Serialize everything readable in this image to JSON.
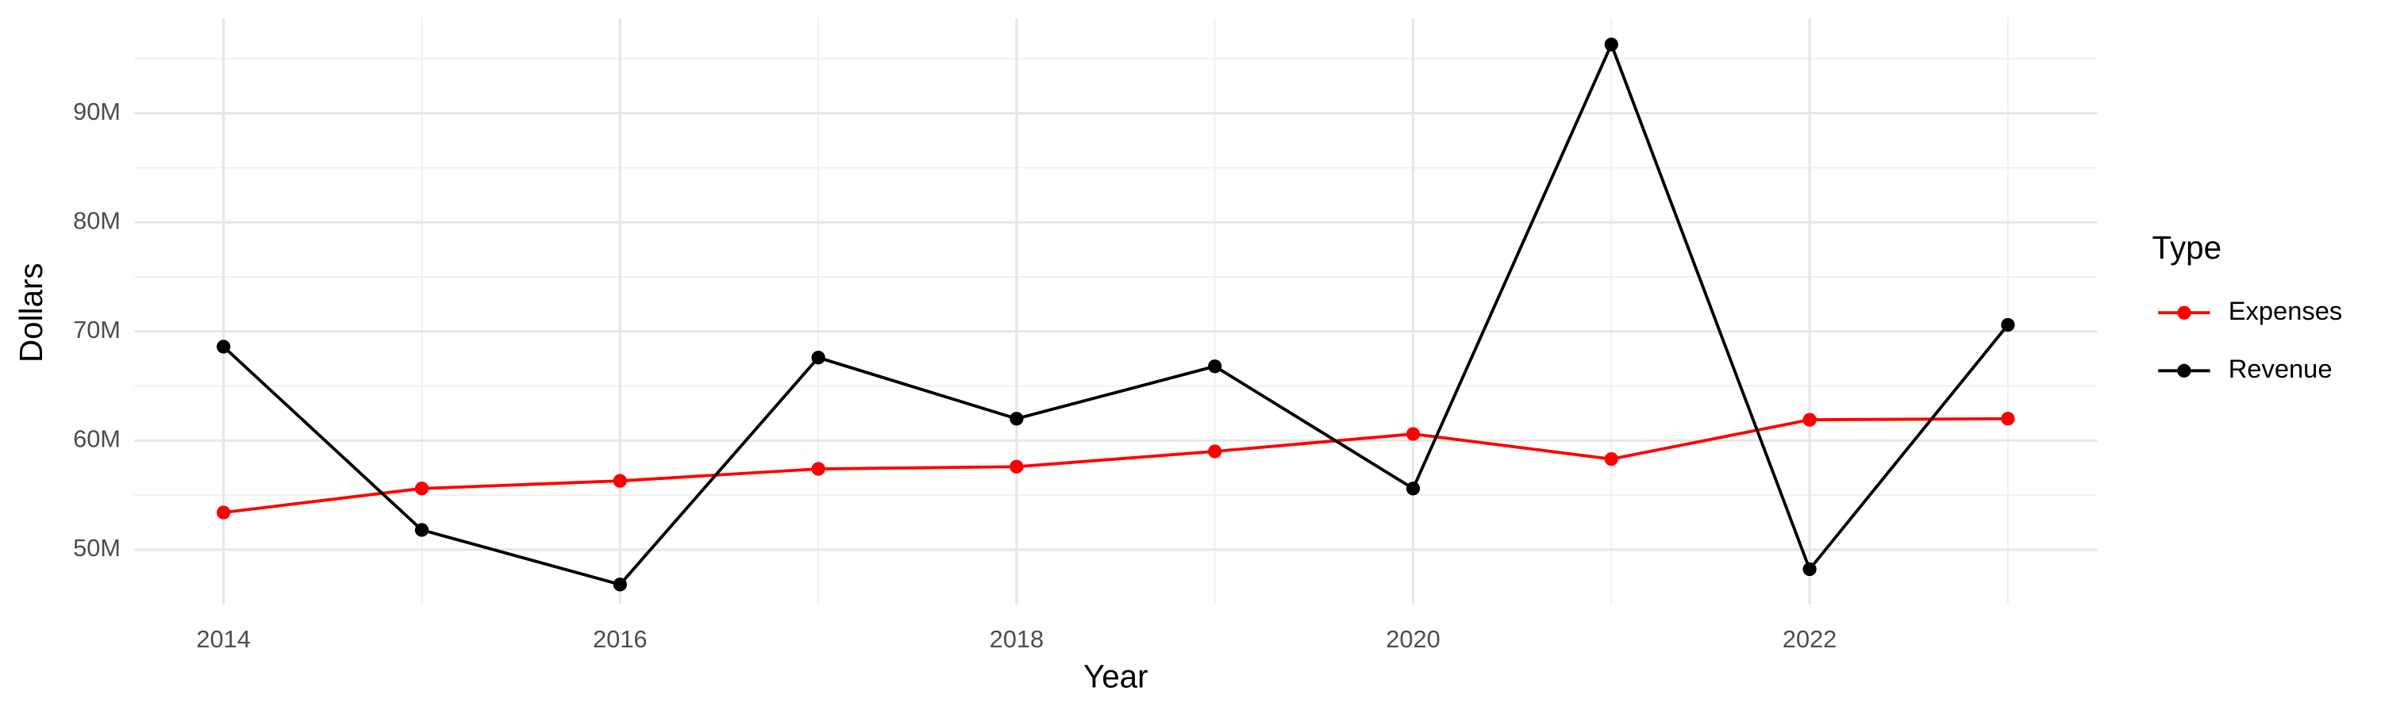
{
  "chart_data": {
    "type": "line",
    "x_label": "Year",
    "y_label": "Dollars",
    "legend_title": "Type",
    "x": [
      2014,
      2015,
      2016,
      2017,
      2018,
      2019,
      2020,
      2021,
      2022,
      2023
    ],
    "series": [
      {
        "name": "Expenses",
        "color": "#ff0000",
        "values": [
          53400000,
          55600000,
          56300000,
          57400000,
          57600000,
          59000000,
          60600000,
          58300000,
          61900000,
          62000000
        ]
      },
      {
        "name": "Revenue",
        "color": "#000000",
        "values": [
          68600000,
          51800000,
          46800000,
          67600000,
          62000000,
          66800000,
          55600000,
          96300000,
          48200000,
          70600000
        ]
      }
    ],
    "xlim": [
      2013.55,
      2023.45
    ],
    "xticks": [
      2014,
      2016,
      2018,
      2020,
      2022
    ],
    "ylim": [
      45000000,
      98700000
    ],
    "yticks": [
      {
        "value": 50000000,
        "label": "50M"
      },
      {
        "value": 60000000,
        "label": "60M"
      },
      {
        "value": 70000000,
        "label": "70M"
      },
      {
        "value": 80000000,
        "label": "80M"
      },
      {
        "value": 90000000,
        "label": "90M"
      }
    ],
    "grid": true,
    "legend_position": "right"
  }
}
